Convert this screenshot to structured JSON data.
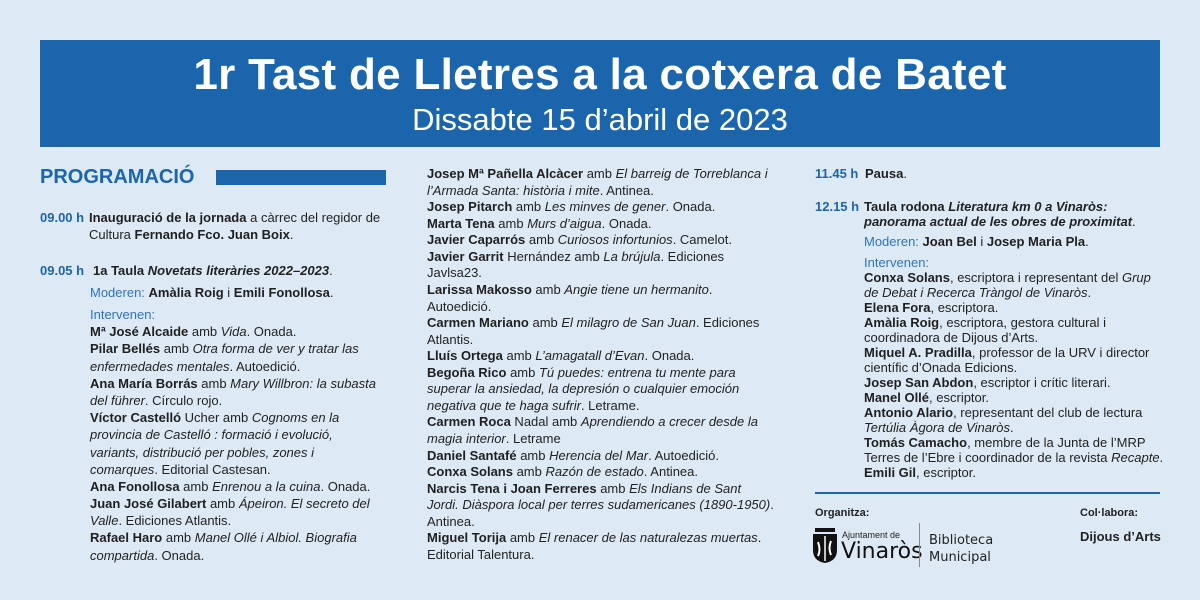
{
  "header": {
    "title": "1r Tast de Lletres a la cotxera de Batet",
    "subtitle": "Dissabte 15 d’abril de 2023"
  },
  "colors": {
    "brand_blue": "#1b65ad",
    "background": "#dde9f5"
  },
  "programme_heading": "PROGRAMACIÓ",
  "col1": {
    "t1": "09.00 h",
    "b1": [
      [
        [
          "b",
          "Inauguració de la jornada"
        ],
        [
          "n",
          " a càrrec del regidor de"
        ]
      ],
      [
        [
          "n",
          "Cultura "
        ],
        [
          "b",
          "Fernando Fco. Juan Boix"
        ],
        [
          "n",
          "."
        ]
      ]
    ],
    "t2": "09.05 h",
    "b2": [
      [
        [
          "b",
          "1a Taula "
        ],
        [
          "bi",
          "Novetats literàries 2022–2023"
        ],
        [
          "n",
          "."
        ]
      ]
    ],
    "mod": [
      [
        [
          "blue",
          "Moderen: "
        ],
        [
          "b",
          "Amàlia Roig"
        ],
        [
          "n",
          " i "
        ],
        [
          "b",
          "Emili Fonollosa"
        ],
        [
          "n",
          "."
        ]
      ]
    ],
    "list": [
      [
        [
          "blue",
          "Intervenen:"
        ]
      ],
      [
        [
          "b",
          "Mª José Alcaide"
        ],
        [
          "n",
          " amb "
        ],
        [
          "i",
          "Vida"
        ],
        [
          "n",
          ". Onada."
        ]
      ],
      [
        [
          "b",
          "Pilar Bellés"
        ],
        [
          "n",
          " amb "
        ],
        [
          "i",
          "Otra forma de ver y tratar las"
        ]
      ],
      [
        [
          "i",
          "enfermedades mentales"
        ],
        [
          "n",
          ". Autoedició."
        ]
      ],
      [
        [
          "b",
          "Ana María Borrás"
        ],
        [
          "n",
          " amb "
        ],
        [
          "i",
          "Mary Willbron: la subasta"
        ]
      ],
      [
        [
          "i",
          "del führer"
        ],
        [
          "n",
          ". Círculo rojo."
        ]
      ],
      [
        [
          "b",
          "Víctor Castelló"
        ],
        [
          "n",
          " Ucher amb "
        ],
        [
          "i",
          "Cognoms en la"
        ]
      ],
      [
        [
          "i",
          "provincia de Castelló : formació i evolució,"
        ]
      ],
      [
        [
          "i",
          "variants, distribució per pobles, zones i"
        ]
      ],
      [
        [
          "i",
          "comarques"
        ],
        [
          "n",
          ". Editorial Castesan."
        ]
      ],
      [
        [
          "b",
          "Ana Fonollosa"
        ],
        [
          "n",
          " amb "
        ],
        [
          "i",
          "Enrenou a la cuina"
        ],
        [
          "n",
          ". Onada."
        ]
      ],
      [
        [
          "b",
          "Juan José Gilabert"
        ],
        [
          "n",
          " amb "
        ],
        [
          "i",
          "Ápeiron. El secreto del"
        ]
      ],
      [
        [
          "i",
          "Valle"
        ],
        [
          "n",
          ". Ediciones Atlantis."
        ]
      ],
      [
        [
          "b",
          "Rafael Haro"
        ],
        [
          "n",
          " amb "
        ],
        [
          "i",
          "Manel Ollé i Albiol. Biografia"
        ]
      ],
      [
        [
          "i",
          "compartida"
        ],
        [
          "n",
          ". Onada."
        ]
      ]
    ]
  },
  "col2": {
    "list": [
      [
        [
          "b",
          "Josep Mª Pañella Alcàcer"
        ],
        [
          "n",
          " amb "
        ],
        [
          "i",
          "El barreig de Torreblanca i"
        ]
      ],
      [
        [
          "i",
          "l’Armada Santa: història i mite"
        ],
        [
          "n",
          ". Antinea."
        ]
      ],
      [
        [
          "b",
          "Josep Pitarch"
        ],
        [
          "n",
          " amb "
        ],
        [
          "i",
          "Les minves de gener"
        ],
        [
          "n",
          ". Onada."
        ]
      ],
      [
        [
          "b",
          "Marta Tena"
        ],
        [
          "n",
          " amb "
        ],
        [
          "i",
          "Murs d’aigua"
        ],
        [
          "n",
          ". Onada."
        ]
      ],
      [
        [
          "b",
          "Javier Caparrós"
        ],
        [
          "n",
          " amb "
        ],
        [
          "i",
          "Curiosos infortunios"
        ],
        [
          "n",
          ". Camelot."
        ]
      ],
      [
        [
          "b",
          "Javier Garrit"
        ],
        [
          "n",
          " Hernández amb "
        ],
        [
          "i",
          "La brújula"
        ],
        [
          "n",
          ". Ediciones"
        ]
      ],
      [
        [
          "n",
          "Javlsa23."
        ]
      ],
      [
        [
          "b",
          "Larissa Makosso"
        ],
        [
          "n",
          " amb "
        ],
        [
          "i",
          "Angie tiene un hermanito"
        ],
        [
          "n",
          "."
        ]
      ],
      [
        [
          "n",
          "Autoedició."
        ]
      ],
      [
        [
          "b",
          "Carmen Mariano"
        ],
        [
          "n",
          " amb "
        ],
        [
          "i",
          "El milagro de San Juan"
        ],
        [
          "n",
          ". Ediciones"
        ]
      ],
      [
        [
          "n",
          "Atlantis."
        ]
      ],
      [
        [
          "b",
          "Lluís Ortega"
        ],
        [
          "n",
          " amb "
        ],
        [
          "i",
          "L’amagatall d’Evan"
        ],
        [
          "n",
          ". Onada."
        ]
      ],
      [
        [
          "b",
          "Begoña Rico"
        ],
        [
          "n",
          " amb "
        ],
        [
          "i",
          "Tú puedes: entrena tu mente para"
        ]
      ],
      [
        [
          "i",
          "superar la ansiedad, la depresión o cualquier emoción"
        ]
      ],
      [
        [
          "i",
          "negativa que te haga sufrir"
        ],
        [
          "n",
          ". Letrame."
        ]
      ],
      [
        [
          "b",
          "Carmen Roca"
        ],
        [
          "n",
          " Nadal amb "
        ],
        [
          "i",
          "Aprendiendo a crecer desde la"
        ]
      ],
      [
        [
          "i",
          "magia interior"
        ],
        [
          "n",
          ". Letrame"
        ]
      ],
      [
        [
          "b",
          "Daniel Santafé"
        ],
        [
          "n",
          " amb "
        ],
        [
          "i",
          "Herencia del Mar"
        ],
        [
          "n",
          ". Autoedició."
        ]
      ],
      [
        [
          "b",
          "Conxa Solans"
        ],
        [
          "n",
          " amb "
        ],
        [
          "i",
          "Razón de estado"
        ],
        [
          "n",
          ". Antinea."
        ]
      ],
      [
        [
          "b",
          "Narcis Tena i Joan Ferreres"
        ],
        [
          "n",
          " amb "
        ],
        [
          "i",
          "Els Indians de Sant"
        ]
      ],
      [
        [
          "i",
          "Jordi. Diàspora local per terres sudamericanes (1890-1950)"
        ],
        [
          "n",
          "."
        ]
      ],
      [
        [
          "n",
          "Antinea."
        ]
      ],
      [
        [
          "b",
          "Miguel Torija"
        ],
        [
          "n",
          " amb "
        ],
        [
          "i",
          "El renacer de las naturalezas muertas"
        ],
        [
          "n",
          "."
        ]
      ],
      [
        [
          "n",
          "Editorial Talentura."
        ]
      ]
    ]
  },
  "col3": {
    "t1": "11.45 h",
    "b1": [
      [
        [
          "b",
          "Pausa"
        ],
        [
          "n",
          "."
        ]
      ]
    ],
    "t2": "12.15 h",
    "b2": [
      [
        [
          "b",
          "Taula rodona "
        ],
        [
          "bi",
          "Literatura km 0 a Vinaròs:"
        ]
      ],
      [
        [
          "bi",
          "panorama actual de les obres de proximitat"
        ],
        [
          "n",
          "."
        ]
      ]
    ],
    "mod": [
      [
        [
          "blue",
          "Moderen: "
        ],
        [
          "b",
          "Joan Bel"
        ],
        [
          "n",
          " i "
        ],
        [
          "b",
          "Josep Maria Pla"
        ],
        [
          "n",
          "."
        ]
      ]
    ],
    "list": [
      [
        [
          "blue",
          "Intervenen:"
        ]
      ],
      [
        [
          "b",
          "Conxa Solans"
        ],
        [
          "n",
          ", escriptora i representant del "
        ],
        [
          "i",
          "Grup"
        ]
      ],
      [
        [
          "i",
          "de Debat i Recerca Tràngol de Vinaròs"
        ],
        [
          "n",
          "."
        ]
      ],
      [
        [
          "b",
          "Elena Fora"
        ],
        [
          "n",
          ", escriptora."
        ]
      ],
      [
        [
          "b",
          "Amàlia Roig"
        ],
        [
          "n",
          ", escriptora, gestora cultural i"
        ]
      ],
      [
        [
          "n",
          "coordinadora de Dijous d’Arts."
        ]
      ],
      [
        [
          "b",
          "Miquel A. Pradilla"
        ],
        [
          "n",
          ", professor de la URV i director"
        ]
      ],
      [
        [
          "n",
          "científic d’Onada Edicions."
        ]
      ],
      [
        [
          "b",
          "Josep San Abdon"
        ],
        [
          "n",
          ", escriptor i crític literari."
        ]
      ],
      [
        [
          "b",
          "Manel Ollé"
        ],
        [
          "n",
          ", escriptor."
        ]
      ],
      [
        [
          "b",
          "Antonio Alario"
        ],
        [
          "n",
          ", representant del club de lectura"
        ]
      ],
      [
        [
          "i",
          "Tertúlia Àgora de Vinaròs"
        ],
        [
          "n",
          "."
        ]
      ],
      [
        [
          "b",
          "Tomás Camacho"
        ],
        [
          "n",
          ", membre de la Junta de l’MRP"
        ]
      ],
      [
        [
          "n",
          "Terres de l’Ebre i coordinador de la revista "
        ],
        [
          "i",
          "Recapte"
        ],
        [
          "n",
          "."
        ]
      ],
      [
        [
          "b",
          "Emili Gil"
        ],
        [
          "n",
          ", escriptor."
        ]
      ]
    ]
  },
  "footer": {
    "organitza_label": "Organitza:",
    "collabora_label": "Col·labora:",
    "logo_small": "Ajuntament de",
    "logo_big": "Vinaròs",
    "library_line1": "Biblioteca",
    "library_line2": "Municipal",
    "partner": "Dijous d’Arts"
  }
}
